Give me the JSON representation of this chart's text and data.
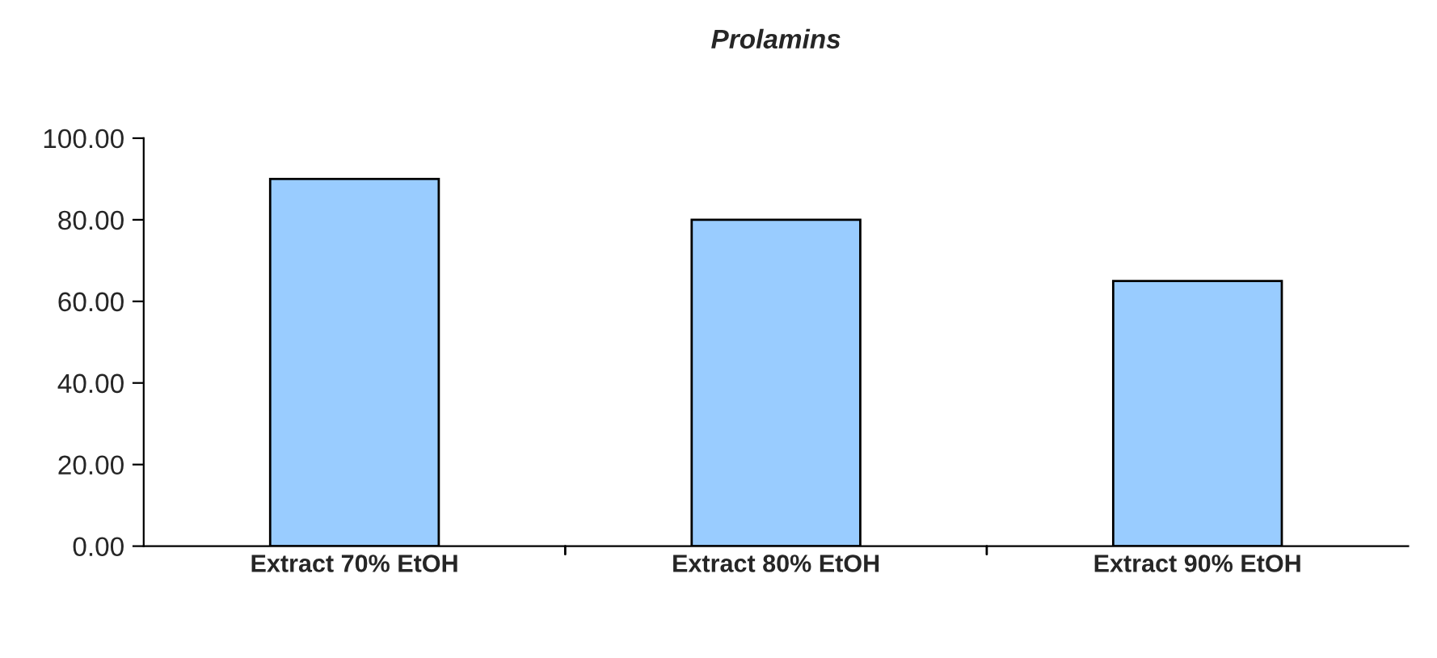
{
  "chart_data": {
    "type": "bar",
    "title": "Prolamins",
    "categories": [
      "Extract 70% EtOH",
      "Extract 80% EtOH",
      "Extract 90% EtOH"
    ],
    "values": [
      90,
      80,
      65
    ],
    "color": "#99ccff",
    "ylim": [
      0,
      100
    ],
    "yticks": [
      {
        "value": 0,
        "label": "0.00"
      },
      {
        "value": 20,
        "label": "20.00"
      },
      {
        "value": 40,
        "label": "40.00"
      },
      {
        "value": 60,
        "label": "60.00"
      },
      {
        "value": 80,
        "label": "80.00"
      },
      {
        "value": 100,
        "label": "100.00"
      }
    ],
    "grid": false
  }
}
